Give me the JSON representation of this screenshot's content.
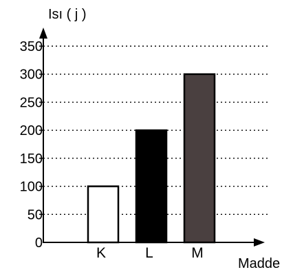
{
  "chart_data": {
    "type": "bar",
    "ylabel": "Isı ( j )",
    "xlabel": "Madde",
    "categories": [
      "K",
      "L",
      "M"
    ],
    "values": [
      100,
      200,
      300
    ],
    "ylim": [
      0,
      350
    ],
    "yticks": [
      0,
      50,
      100,
      150,
      200,
      250,
      300,
      350
    ],
    "grid": "dotted horizontal",
    "bar_fills": [
      "#ffffff",
      "#000000",
      "#4a4040"
    ]
  }
}
